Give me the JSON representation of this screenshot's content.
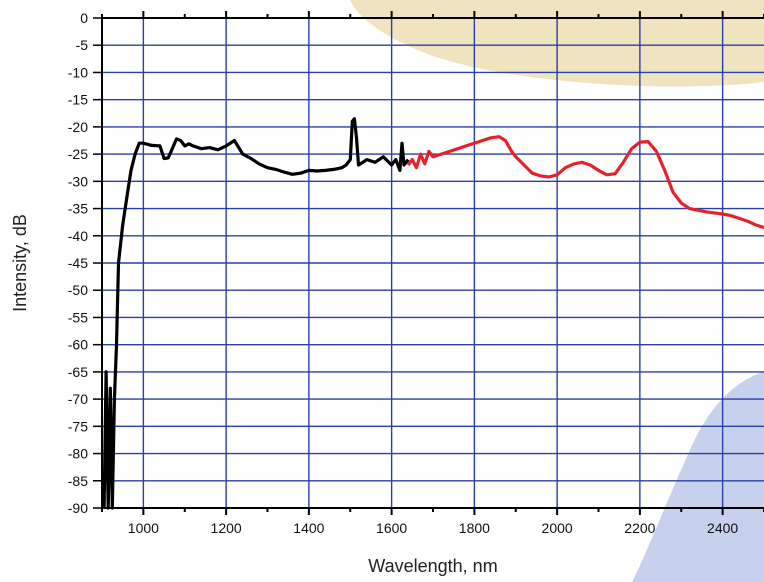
{
  "chart_data": {
    "type": "line",
    "xlabel": "Wavelength, nm",
    "ylabel": "Intensity, dB",
    "xlim": [
      900,
      2500
    ],
    "ylim": [
      -90,
      0
    ],
    "x_ticks": [
      1000,
      1200,
      1400,
      1600,
      1800,
      2000,
      2200,
      2400
    ],
    "x_tick_labels": [
      "1000",
      "1200",
      "1400",
      "1600",
      "1800",
      "2000",
      "2200",
      "2400"
    ],
    "y_ticks": [
      0,
      -5,
      -10,
      -15,
      -20,
      -25,
      -30,
      -35,
      -40,
      -45,
      -50,
      -55,
      -60,
      -65,
      -70,
      -75,
      -80,
      -85,
      -90
    ],
    "y_tick_labels": [
      "0",
      "-5",
      "-10",
      "-15",
      "-20",
      "-25",
      "-30",
      "-35",
      "-40",
      "-45",
      "-50",
      "-55",
      "-60",
      "-65",
      "-70",
      "-75",
      "-80",
      "-85",
      "-90"
    ],
    "grid": true,
    "colors": {
      "grid": "#2b3fa8",
      "axis": "#000000",
      "deco_top": "#efe3c0",
      "deco_bottom": "#c7d1ee"
    },
    "series": [
      {
        "color": "#000000",
        "x": [
          905,
          910,
          915,
          920,
          925,
          930,
          935,
          940,
          950,
          960,
          970,
          980,
          990,
          1000,
          1010,
          1020,
          1040,
          1050,
          1060,
          1070,
          1080,
          1090,
          1100,
          1110,
          1120,
          1140,
          1160,
          1180,
          1200,
          1220,
          1240,
          1260,
          1280,
          1300,
          1320,
          1340,
          1360,
          1380,
          1400,
          1420,
          1440,
          1460,
          1480,
          1490,
          1500,
          1505,
          1510,
          1515,
          1520,
          1530,
          1540,
          1560,
          1580,
          1600,
          1610,
          1620,
          1625,
          1630,
          1635,
          1640
        ],
        "y": [
          -90,
          -65,
          -90,
          -68,
          -90,
          -70,
          -60,
          -45,
          -38,
          -33,
          -28,
          -25,
          -23,
          -23,
          -23.2,
          -23.4,
          -23.5,
          -25.8,
          -25.7,
          -24,
          -22.2,
          -22.5,
          -23.5,
          -23.1,
          -23.5,
          -24,
          -23.8,
          -24.2,
          -23.5,
          -22.5,
          -25,
          -25.8,
          -26.8,
          -27.5,
          -27.8,
          -28.3,
          -28.7,
          -28.5,
          -28,
          -28.1,
          -28,
          -27.8,
          -27.5,
          -27,
          -26,
          -19,
          -18.5,
          -22,
          -27,
          -26.5,
          -26,
          -26.5,
          -25.5,
          -27,
          -26,
          -28,
          -23,
          -27,
          -26.5,
          -26
        ]
      },
      {
        "color": "#e8202a",
        "x": [
          1640,
          1650,
          1660,
          1670,
          1680,
          1690,
          1700,
          1720,
          1740,
          1760,
          1780,
          1800,
          1820,
          1840,
          1860,
          1875,
          1890,
          1900,
          1920,
          1940,
          1960,
          1980,
          2000,
          2020,
          2040,
          2060,
          2080,
          2100,
          2120,
          2140,
          2160,
          2180,
          2200,
          2220,
          2240,
          2260,
          2280,
          2300,
          2320,
          2340,
          2360,
          2380,
          2400,
          2420,
          2440,
          2460,
          2480,
          2500
        ],
        "y": [
          -27,
          -26,
          -27.5,
          -25,
          -26.8,
          -24.5,
          -25.5,
          -25,
          -24.5,
          -24,
          -23.5,
          -23,
          -22.5,
          -22,
          -21.8,
          -22.5,
          -24.5,
          -25.5,
          -27,
          -28.5,
          -29,
          -29.2,
          -28.8,
          -27.5,
          -26.8,
          -26.5,
          -27,
          -28,
          -28.8,
          -28.6,
          -26.5,
          -24,
          -22.8,
          -22.7,
          -24.5,
          -28,
          -32,
          -34,
          -35,
          -35.3,
          -35.6,
          -35.8,
          -36,
          -36.3,
          -36.8,
          -37.3,
          -38,
          -38.5
        ]
      }
    ]
  }
}
